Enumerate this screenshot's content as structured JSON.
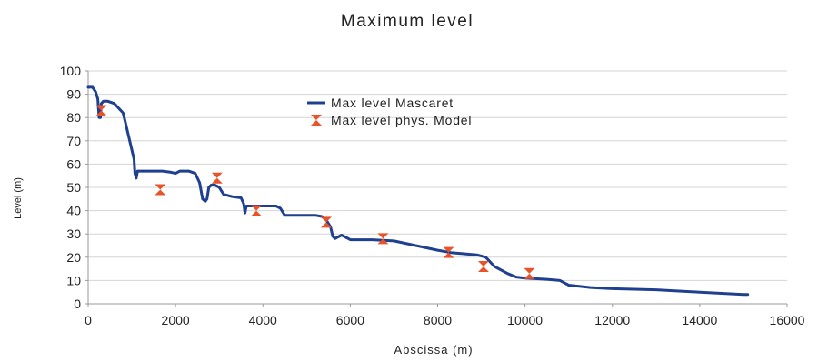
{
  "chart_data": {
    "type": "line",
    "title": "Maximum level",
    "xlabel": "Abscissa (m)",
    "ylabel": "Level (m)",
    "xlim": [
      0,
      16000
    ],
    "ylim": [
      0,
      100
    ],
    "x_ticks": [
      0,
      2000,
      4000,
      6000,
      8000,
      10000,
      12000,
      14000,
      16000
    ],
    "y_ticks": [
      0,
      10,
      20,
      30,
      40,
      50,
      60,
      70,
      80,
      90,
      100
    ],
    "grid": "horizontal",
    "legend_position": "top-center",
    "series": [
      {
        "name": "Max level Mascaret",
        "kind": "line",
        "color": "#1f3f8f",
        "points": [
          [
            0,
            93
          ],
          [
            100,
            93
          ],
          [
            170,
            91
          ],
          [
            220,
            88
          ],
          [
            250,
            80
          ],
          [
            280,
            80
          ],
          [
            300,
            86
          ],
          [
            350,
            87
          ],
          [
            450,
            87
          ],
          [
            600,
            86
          ],
          [
            700,
            84
          ],
          [
            800,
            82
          ],
          [
            850,
            78
          ],
          [
            900,
            74
          ],
          [
            950,
            70
          ],
          [
            1000,
            66
          ],
          [
            1050,
            62
          ],
          [
            1070,
            56
          ],
          [
            1100,
            54
          ],
          [
            1130,
            57
          ],
          [
            1300,
            57
          ],
          [
            1700,
            57
          ],
          [
            1900,
            56.5
          ],
          [
            2000,
            56
          ],
          [
            2100,
            57
          ],
          [
            2300,
            57
          ],
          [
            2450,
            56
          ],
          [
            2550,
            52
          ],
          [
            2620,
            45
          ],
          [
            2680,
            44
          ],
          [
            2720,
            45
          ],
          [
            2760,
            50
          ],
          [
            2820,
            51
          ],
          [
            2900,
            51
          ],
          [
            3000,
            50
          ],
          [
            3100,
            47
          ],
          [
            3300,
            46
          ],
          [
            3500,
            45.5
          ],
          [
            3560,
            43
          ],
          [
            3590,
            39
          ],
          [
            3620,
            42
          ],
          [
            3800,
            42
          ],
          [
            4000,
            42
          ],
          [
            4300,
            42
          ],
          [
            4400,
            41
          ],
          [
            4500,
            38
          ],
          [
            4800,
            38
          ],
          [
            5000,
            38
          ],
          [
            5200,
            38
          ],
          [
            5350,
            37.5
          ],
          [
            5450,
            36
          ],
          [
            5550,
            33
          ],
          [
            5600,
            29
          ],
          [
            5650,
            28
          ],
          [
            5700,
            28.5
          ],
          [
            5800,
            29.5
          ],
          [
            5900,
            28.5
          ],
          [
            6000,
            27.5
          ],
          [
            6500,
            27.5
          ],
          [
            7000,
            27
          ],
          [
            7500,
            25
          ],
          [
            8000,
            23
          ],
          [
            8300,
            22
          ],
          [
            8600,
            21.5
          ],
          [
            8900,
            21
          ],
          [
            9100,
            20
          ],
          [
            9300,
            16
          ],
          [
            9600,
            13
          ],
          [
            9800,
            11.5
          ],
          [
            10000,
            11
          ],
          [
            10500,
            10.5
          ],
          [
            10800,
            10
          ],
          [
            11000,
            8
          ],
          [
            11500,
            7
          ],
          [
            12000,
            6.5
          ],
          [
            13000,
            6
          ],
          [
            14000,
            5
          ],
          [
            14500,
            4.5
          ],
          [
            15000,
            4
          ],
          [
            15100,
            4
          ]
        ]
      },
      {
        "name": "Max level phys. Model",
        "kind": "marker",
        "color": "#e8542a",
        "points": [
          [
            300,
            83
          ],
          [
            1650,
            49
          ],
          [
            2950,
            54
          ],
          [
            3850,
            40
          ],
          [
            5450,
            35
          ],
          [
            6750,
            28
          ],
          [
            8250,
            22
          ],
          [
            9050,
            16
          ],
          [
            10100,
            13
          ]
        ]
      }
    ]
  }
}
